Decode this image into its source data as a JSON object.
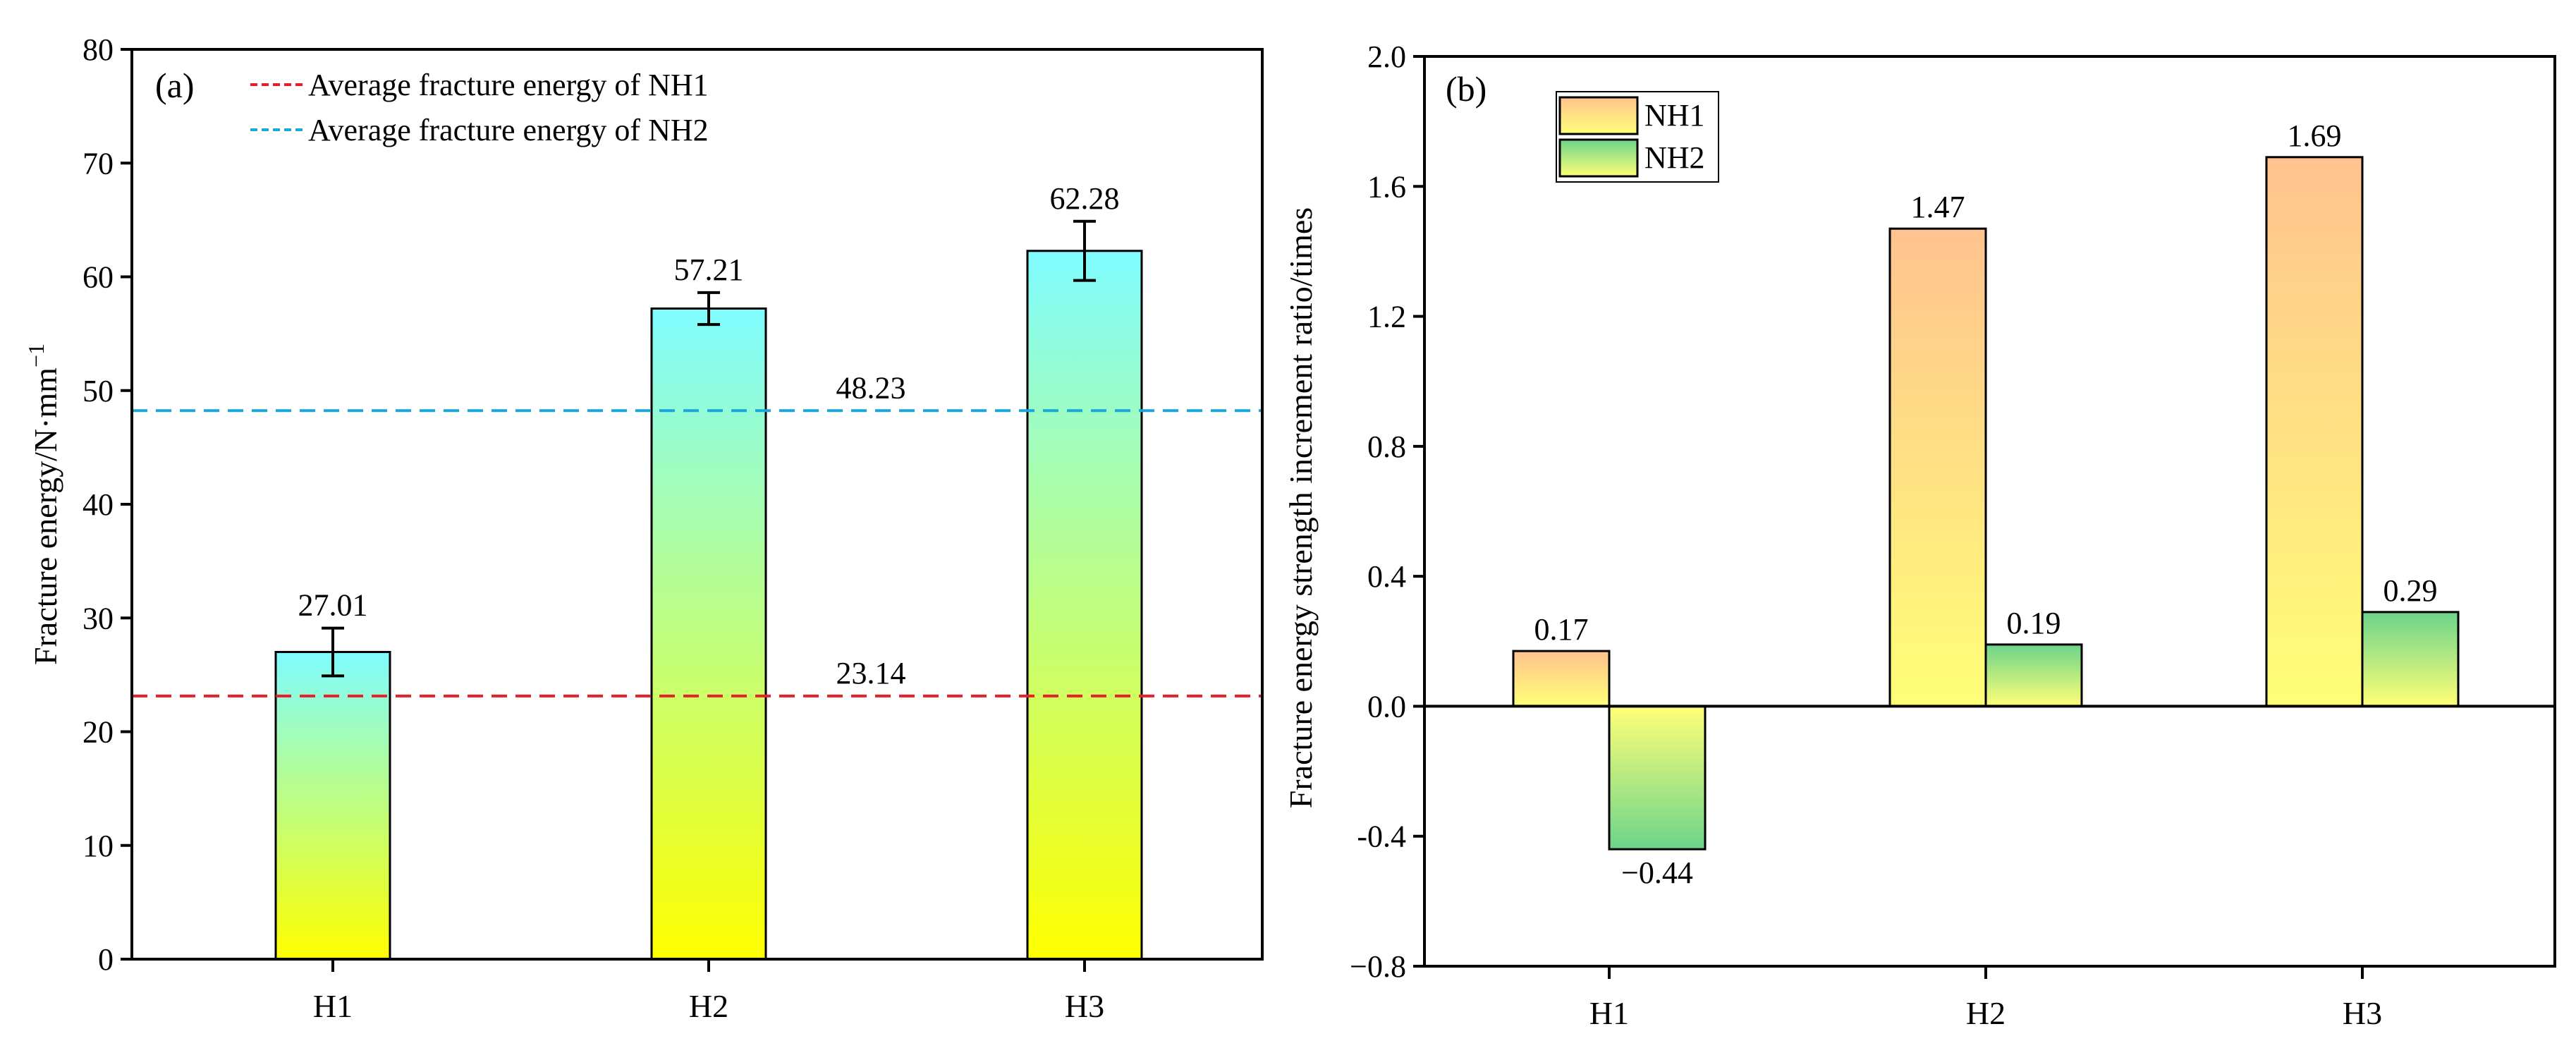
{
  "chart_data": [
    {
      "id": "a",
      "type": "bar",
      "panel_label": "(a)",
      "categories": [
        "H1",
        "H2",
        "H3"
      ],
      "values": [
        27.01,
        57.21,
        62.28
      ],
      "value_labels": [
        "27.01",
        "57.21",
        "62.28"
      ],
      "errors": [
        2.1,
        1.4,
        2.6
      ],
      "ylabel": "Fracture energy/N·mm",
      "ylabel_sup": "−1",
      "ylim": [
        0,
        80
      ],
      "yticks": [
        0,
        10,
        20,
        30,
        40,
        50,
        60,
        70,
        80
      ],
      "ytick_labels": [
        "0",
        "10",
        "20",
        "30",
        "40",
        "50",
        "60",
        "70",
        "80"
      ],
      "reference_lines": [
        {
          "name": "Average fracture energy of NH1",
          "value": 23.14,
          "label": "23.14",
          "color": "#e8202a"
        },
        {
          "name": "Average fracture energy of NH2",
          "value": 48.23,
          "label": "48.23",
          "color": "#1aa7d8"
        }
      ],
      "legend_position": "top-left",
      "bar_gradient": {
        "top": "#7ffcff",
        "bottom": "#ffff00"
      }
    },
    {
      "id": "b",
      "type": "bar",
      "panel_label": "(b)",
      "categories": [
        "H1",
        "H2",
        "H3"
      ],
      "series": [
        {
          "name": "NH1",
          "values": [
            0.17,
            1.47,
            1.69
          ],
          "value_labels": [
            "0.17",
            "1.47",
            "1.69"
          ],
          "gradient": {
            "top": "#ffc38f",
            "bottom": "#ffff77"
          }
        },
        {
          "name": "NH2",
          "values": [
            -0.44,
            0.19,
            0.29
          ],
          "value_labels": [
            "−0.44",
            "0.19",
            "0.29"
          ],
          "gradient": {
            "top": "#6cd48b",
            "bottom": "#ffff77"
          }
        }
      ],
      "ylabel": "Fracture energy strength increment ratio/times",
      "ylim": [
        -0.8,
        2.0
      ],
      "yticks": [
        -0.8,
        -0.4,
        0.0,
        0.4,
        0.8,
        1.2,
        1.6,
        2.0
      ],
      "ytick_labels": [
        "−0.8",
        "-0.4",
        "0.0",
        "0.4",
        "0.8",
        "1.2",
        "1.6",
        "2.0"
      ],
      "legend_position": "top-left"
    }
  ]
}
